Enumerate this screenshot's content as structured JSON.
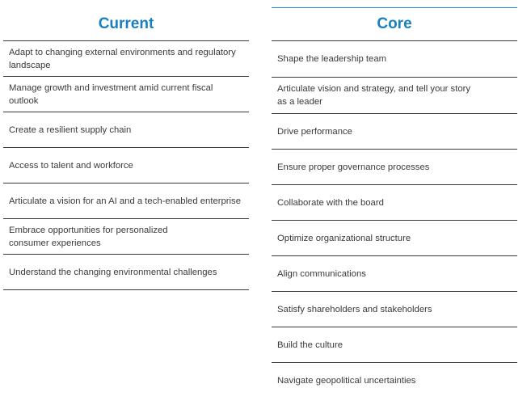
{
  "current": {
    "title": "Current",
    "items": [
      "Adapt to changing external environments and regulatory landscape",
      "Manage growth and investment amid current fiscal outlook",
      "Create a resilient supply chain",
      "Access to talent and workforce",
      "Articulate a vision for an AI and a tech-enabled enterprise",
      "Embrace opportunities for personalized consumer experiences",
      "Understand the changing environmental challenges"
    ]
  },
  "core": {
    "title": "Core",
    "items": [
      "Shape the leadership team",
      "Articulate vision and strategy, and tell your story as a leader",
      "Drive performance",
      "Ensure proper governance processes",
      "Collaborate with the board",
      "Optimize organizational structure",
      "Align communications",
      "Satisfy shareholders and stakeholders",
      "Build the culture",
      "Navigate geopolitical uncertainties"
    ]
  },
  "colors": {
    "heading": "#1a7fc1",
    "rule_accent": "#1f8fc9",
    "text": "#3a3a3a"
  }
}
